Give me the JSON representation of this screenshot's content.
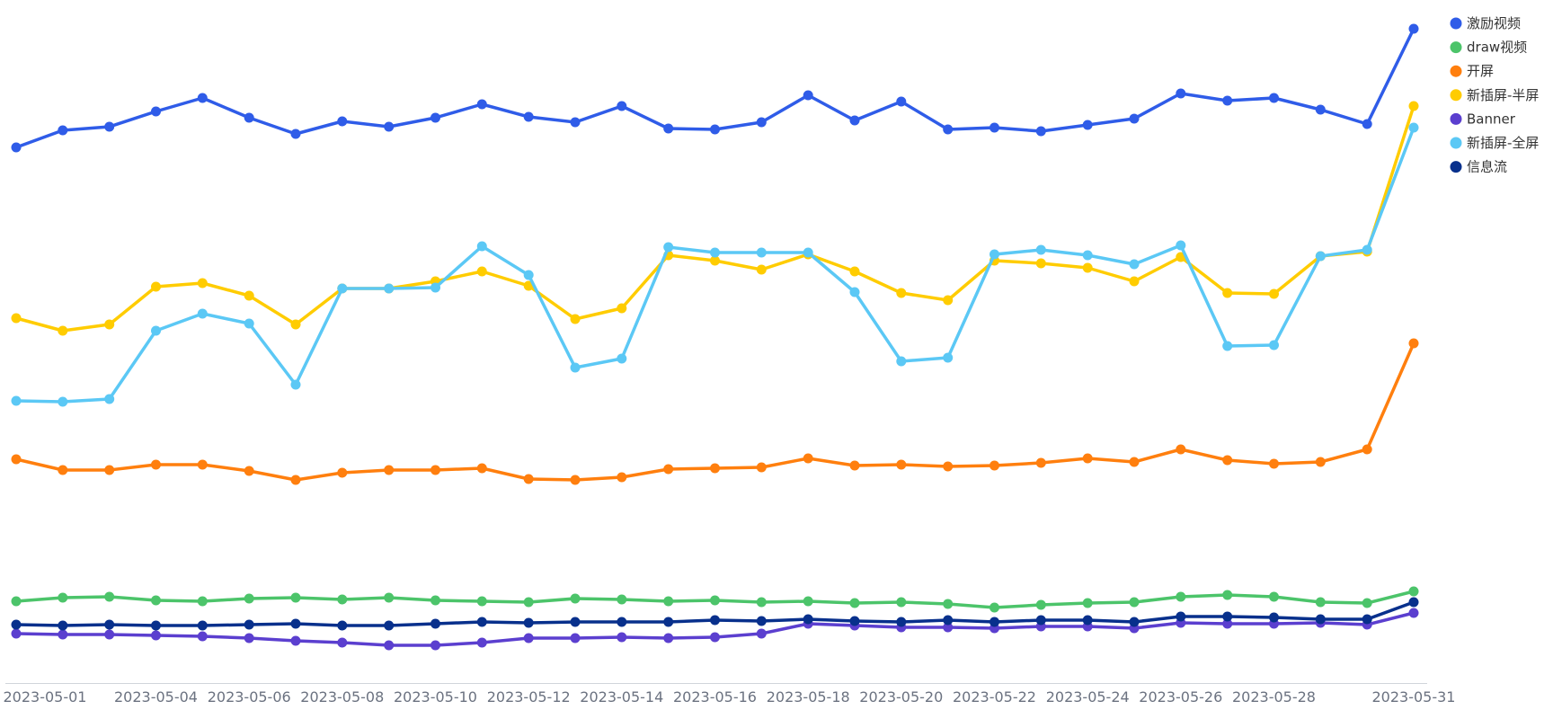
{
  "chart_data": {
    "type": "line",
    "title": "",
    "xlabel": "",
    "ylabel": "",
    "ylim": [
      0,
      700
    ],
    "grid": false,
    "legend": "top-right",
    "x": [
      "2023-05-01",
      "2023-05-02",
      "2023-05-03",
      "2023-05-04",
      "2023-05-05",
      "2023-05-06",
      "2023-05-07",
      "2023-05-08",
      "2023-05-09",
      "2023-05-10",
      "2023-05-11",
      "2023-05-12",
      "2023-05-13",
      "2023-05-14",
      "2023-05-15",
      "2023-05-16",
      "2023-05-17",
      "2023-05-18",
      "2023-05-19",
      "2023-05-20",
      "2023-05-21",
      "2023-05-22",
      "2023-05-23",
      "2023-05-24",
      "2023-05-25",
      "2023-05-26",
      "2023-05-27",
      "2023-05-28",
      "2023-05-29",
      "2023-05-30",
      "2023-05-31"
    ],
    "x_tick_labels": [
      "2023-05-01",
      "2023-05-04",
      "2023-05-06",
      "2023-05-08",
      "2023-05-10",
      "2023-05-12",
      "2023-05-14",
      "2023-05-16",
      "2023-05-18",
      "2023-05-20",
      "2023-05-22",
      "2023-05-24",
      "2023-05-26",
      "2023-05-28",
      "2023-05-31"
    ],
    "series": [
      {
        "name": "激励视频",
        "color": "#2f5ce8",
        "values": [
          566,
          585,
          589,
          606,
          621,
          599,
          581,
          595,
          589,
          599,
          614,
          600,
          594,
          612,
          587,
          586,
          594,
          624,
          596,
          617,
          586,
          588,
          584,
          591,
          598,
          626,
          618,
          621,
          608,
          592,
          698
        ]
      },
      {
        "name": "draw视频",
        "color": "#4cc46a",
        "values": [
          61,
          65,
          66,
          62,
          61,
          64,
          65,
          63,
          65,
          62,
          61,
          60,
          64,
          63,
          61,
          62,
          60,
          61,
          59,
          60,
          58,
          54,
          57,
          59,
          60,
          66,
          68,
          66,
          60,
          59,
          72
        ]
      },
      {
        "name": "开屏",
        "color": "#ff7f0e",
        "values": [
          219,
          207,
          207,
          213,
          213,
          206,
          196,
          204,
          207,
          207,
          209,
          197,
          196,
          199,
          208,
          209,
          210,
          220,
          212,
          213,
          211,
          212,
          215,
          220,
          216,
          230,
          218,
          214,
          216,
          230,
          348
        ]
      },
      {
        "name": "新插屏-半屏",
        "color": "#ffcc00",
        "values": [
          376,
          362,
          369,
          411,
          415,
          401,
          369,
          409,
          409,
          417,
          428,
          412,
          375,
          387,
          446,
          440,
          430,
          447,
          428,
          404,
          396,
          440,
          437,
          432,
          417,
          444,
          404,
          403,
          445,
          450,
          612
        ]
      },
      {
        "name": "Banner",
        "color": "#5b3fcf",
        "values": [
          25,
          24,
          24,
          23,
          22,
          20,
          17,
          15,
          12,
          12,
          15,
          20,
          20,
          21,
          20,
          21,
          25,
          36,
          34,
          32,
          32,
          31,
          33,
          33,
          31,
          37,
          36,
          36,
          37,
          35,
          48
        ]
      },
      {
        "name": "新插屏-全屏",
        "color": "#5bc8f5",
        "values": [
          284,
          283,
          286,
          362,
          381,
          370,
          302,
          409,
          409,
          410,
          456,
          424,
          321,
          331,
          455,
          449,
          449,
          449,
          405,
          328,
          332,
          447,
          452,
          446,
          436,
          457,
          345,
          346,
          445,
          452,
          588
        ]
      },
      {
        "name": "信息流",
        "color": "#08308c",
        "values": [
          35,
          34,
          35,
          34,
          34,
          35,
          36,
          34,
          34,
          36,
          38,
          37,
          38,
          38,
          38,
          40,
          39,
          41,
          39,
          38,
          40,
          38,
          40,
          40,
          38,
          44,
          44,
          43,
          41,
          41,
          60
        ]
      }
    ]
  }
}
